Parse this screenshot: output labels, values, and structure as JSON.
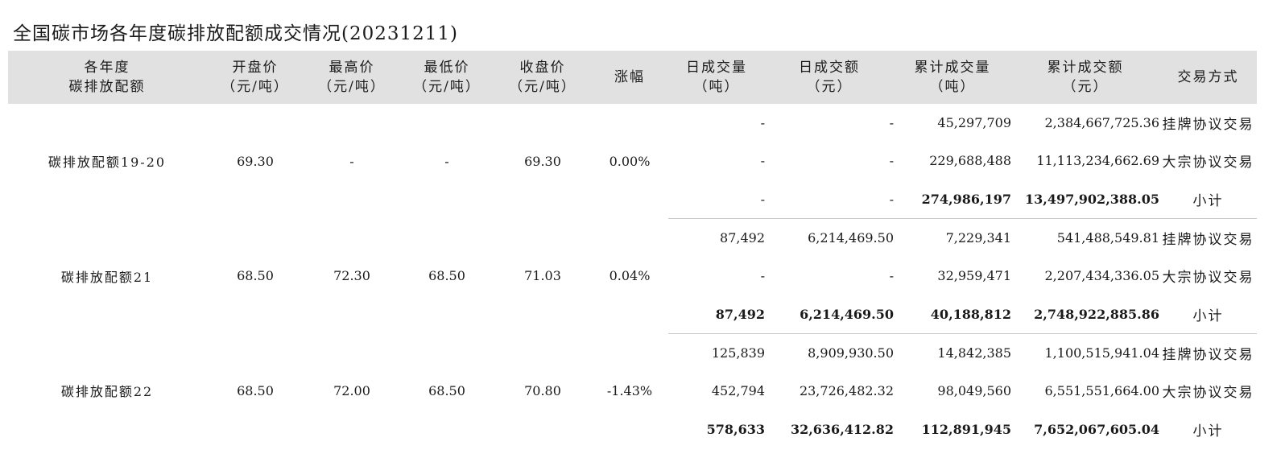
{
  "title": "全国碳市场各年度碳排放配额成交情况(20231211)",
  "columns": [
    [
      "各年度",
      "碳排放配额"
    ],
    [
      "开盘价",
      "（元/吨）"
    ],
    [
      "最高价",
      "（元/吨）"
    ],
    [
      "最低价",
      "（元/吨）"
    ],
    [
      "收盘价",
      "（元/吨）"
    ],
    [
      "涨幅"
    ],
    [
      "日成交量",
      "（吨）"
    ],
    [
      "日成交额",
      "（元）"
    ],
    [
      "累计成交量",
      "（吨）"
    ],
    [
      "累计成交额",
      "（元）"
    ],
    [
      "交易方式"
    ]
  ],
  "groups": [
    {
      "name": "碳排放配额19-20",
      "open": "69.30",
      "high": "-",
      "low": "-",
      "close": "69.30",
      "change": "0.00%",
      "rows": [
        {
          "daily_volume": "-",
          "daily_amount": "-",
          "cum_volume": "45,297,709",
          "cum_amount": "2,384,667,725.36",
          "mode": "挂牌协议交易"
        },
        {
          "daily_volume": "-",
          "daily_amount": "-",
          "cum_volume": "229,688,488",
          "cum_amount": "11,113,234,662.69",
          "mode": "大宗协议交易"
        },
        {
          "daily_volume": "-",
          "daily_amount": "-",
          "cum_volume": "274,986,197",
          "cum_amount": "13,497,902,388.05",
          "mode": "小计"
        }
      ]
    },
    {
      "name": "碳排放配额21",
      "open": "68.50",
      "high": "72.30",
      "low": "68.50",
      "close": "71.03",
      "change": "0.04%",
      "rows": [
        {
          "daily_volume": "87,492",
          "daily_amount": "6,214,469.50",
          "cum_volume": "7,229,341",
          "cum_amount": "541,488,549.81",
          "mode": "挂牌协议交易"
        },
        {
          "daily_volume": "-",
          "daily_amount": "-",
          "cum_volume": "32,959,471",
          "cum_amount": "2,207,434,336.05",
          "mode": "大宗协议交易"
        },
        {
          "daily_volume": "87,492",
          "daily_amount": "6,214,469.50",
          "cum_volume": "40,188,812",
          "cum_amount": "2,748,922,885.86",
          "mode": "小计"
        }
      ]
    },
    {
      "name": "碳排放配额22",
      "open": "68.50",
      "high": "72.00",
      "low": "68.50",
      "close": "70.80",
      "change": "-1.43%",
      "rows": [
        {
          "daily_volume": "125,839",
          "daily_amount": "8,909,930.50",
          "cum_volume": "14,842,385",
          "cum_amount": "1,100,515,941.04",
          "mode": "挂牌协议交易"
        },
        {
          "daily_volume": "452,794",
          "daily_amount": "23,726,482.32",
          "cum_volume": "98,049,560",
          "cum_amount": "6,551,551,664.00",
          "mode": "大宗协议交易"
        },
        {
          "daily_volume": "578,633",
          "daily_amount": "32,636,412.82",
          "cum_volume": "112,891,945",
          "cum_amount": "7,652,067,605.04",
          "mode": "小计"
        }
      ]
    }
  ],
  "colors": {
    "header_bg": "#e1e1e1",
    "text": "#1a1a1a",
    "divider": "#c8c8c8"
  }
}
